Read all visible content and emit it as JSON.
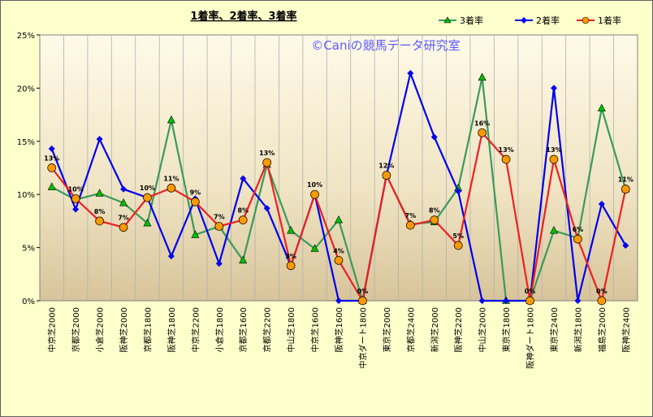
{
  "chart_data": {
    "type": "line",
    "title": "1着率、2着率、3着率",
    "watermark": "©Caniの競馬データ研究室",
    "ylim": [
      0,
      25
    ],
    "yticks": [
      "0%",
      "5%",
      "10%",
      "15%",
      "20%",
      "25%"
    ],
    "grid": "vertical",
    "legend_position": "top-right",
    "categories": [
      "中京芝2000",
      "京都芝2000",
      "小倉芝2000",
      "阪神芝2000",
      "京都芝1800",
      "阪神芝1800",
      "中京芝2200",
      "小倉芝1800",
      "京都芝1600",
      "京都芝2200",
      "中山芝1800",
      "中京芝1600",
      "阪神芝1600",
      "中京ダート1800",
      "東京芝2000",
      "京都芝2400",
      "新潟芝2000",
      "阪神芝2200",
      "中山芝2000",
      "東京芝1800",
      "阪神ダート1800",
      "東京芝2400",
      "新潟芝1800",
      "福島芝2000",
      "阪神芝2400"
    ],
    "series": [
      {
        "name": "3着率",
        "color": "#3a9a5c",
        "marker": "triangle",
        "marker_fill": "#00c000",
        "values": [
          10.7,
          9.5,
          10.1,
          9.2,
          7.3,
          17.0,
          6.2,
          7.0,
          3.8,
          12.8,
          6.6,
          4.9,
          7.6,
          0.0,
          11.8,
          7.2,
          7.4,
          10.6,
          21.0,
          0.0,
          0.0,
          6.6,
          5.9,
          18.1,
          10.5
        ]
      },
      {
        "name": "2着率",
        "color": "#0000ee",
        "marker": "diamond",
        "marker_fill": "#0000ee",
        "values": [
          14.3,
          8.6,
          15.2,
          10.5,
          9.7,
          4.2,
          9.6,
          3.5,
          11.5,
          8.7,
          3.3,
          10.0,
          0.0,
          0.0,
          11.8,
          21.4,
          15.4,
          10.3,
          0.0,
          0.0,
          0.0,
          20.0,
          0.0,
          9.1,
          5.2
        ]
      },
      {
        "name": "1着率",
        "color": "#ee2020",
        "marker": "circle",
        "marker_fill": "#ff9900",
        "values": [
          12.5,
          9.6,
          7.5,
          6.9,
          9.7,
          10.6,
          9.3,
          7.0,
          7.6,
          13.0,
          3.3,
          10.0,
          3.8,
          0.0,
          11.8,
          7.1,
          7.6,
          5.2,
          15.8,
          13.3,
          0.0,
          13.3,
          5.8,
          0.0,
          10.5
        ]
      }
    ],
    "data_labels": [
      "13%",
      "10%",
      "8%",
      "7%",
      "10%",
      "11%",
      "9%",
      "7%",
      "8%",
      "13%",
      "3%",
      "10%",
      "4%",
      "0%",
      "12%",
      "7%",
      "8%",
      "5%",
      "16%",
      "13%",
      "0%",
      "13%",
      "6%",
      "0%",
      "11%"
    ]
  }
}
